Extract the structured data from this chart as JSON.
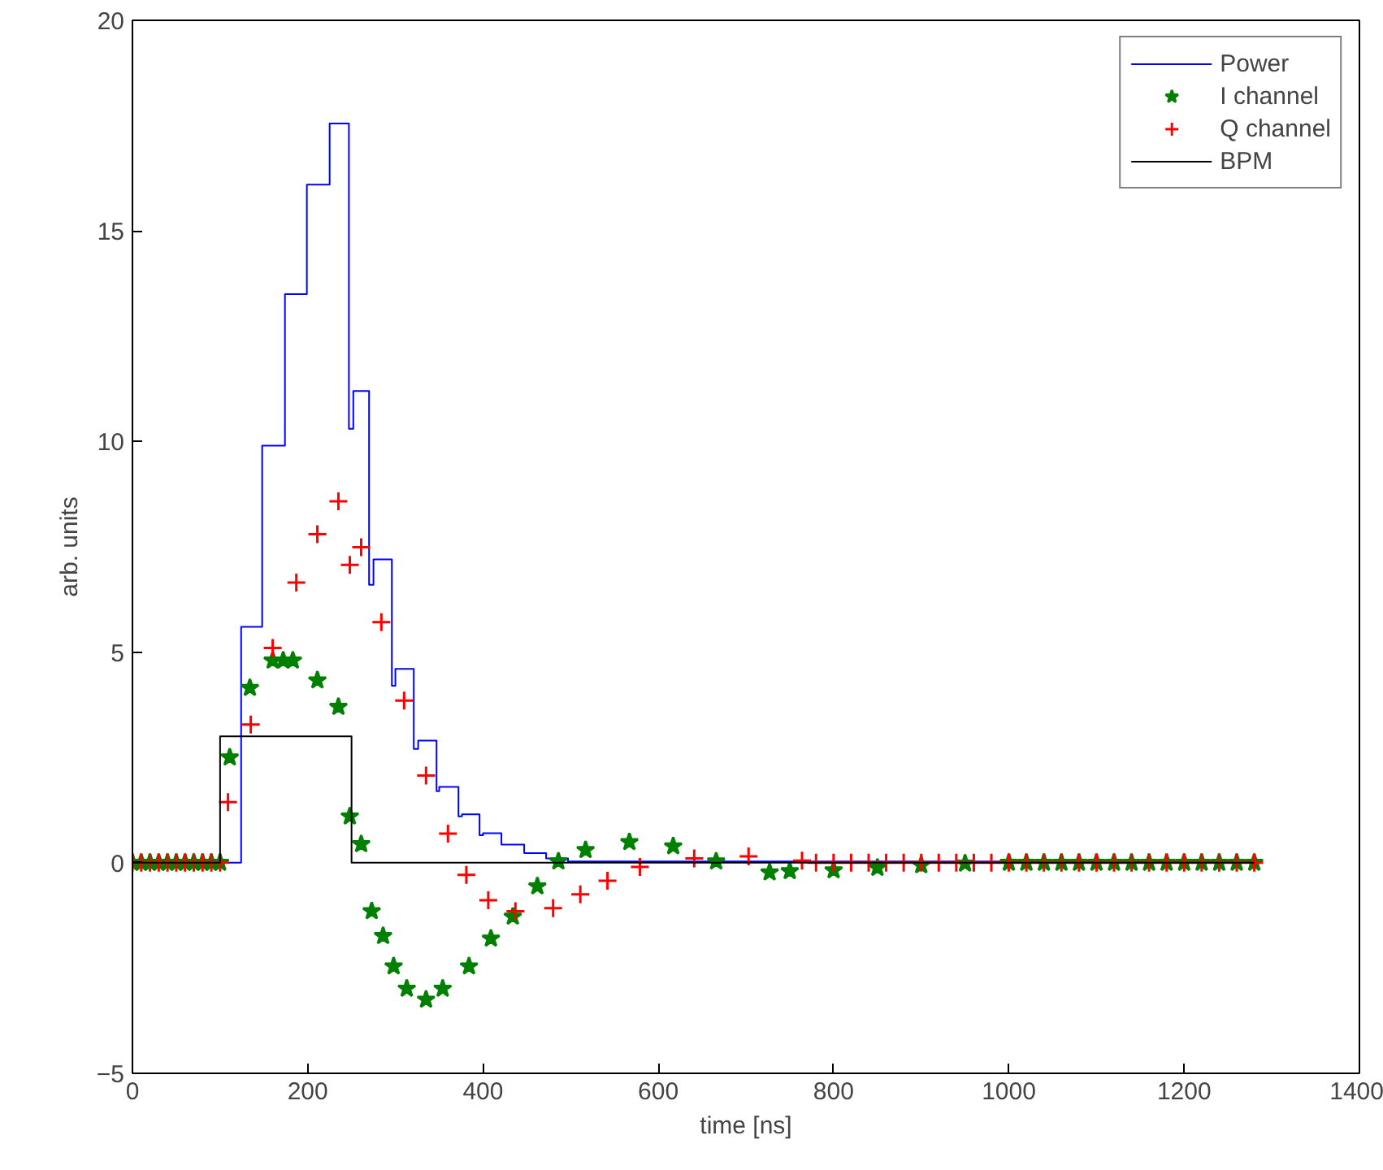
{
  "chart_data": {
    "type": "step",
    "xlabel": "time [ns]",
    "ylabel": "arb. units",
    "xlim": [
      0,
      1400
    ],
    "xticks": [
      0,
      200,
      400,
      600,
      800,
      1000,
      1200,
      1400
    ],
    "ylim": [
      -5,
      20
    ],
    "yticks": [
      -5,
      0,
      5,
      10,
      15,
      20
    ],
    "grid": false,
    "legend": "top right",
    "series": [
      {
        "name": "Power",
        "color": "#0000ff",
        "x": [
          0,
          124,
          148,
          174,
          199,
          225,
          247,
          252,
          270,
          275,
          296,
          300,
          321,
          326,
          347,
          350,
          372,
          376,
          396,
          400,
          421,
          447,
          472,
          497,
          1280
        ],
        "values": [
          0,
          5.6,
          9.9,
          13.5,
          16.1,
          17.55,
          10.3,
          11.2,
          6.6,
          7.2,
          4.2,
          4.6,
          2.7,
          2.9,
          1.7,
          1.8,
          1.1,
          1.15,
          0.65,
          0.7,
          0.43,
          0.23,
          0.1,
          0.03,
          0.03
        ]
      },
      {
        "name": "I channel",
        "type": "scatter",
        "color": "#008000",
        "marker": "star",
        "x": [
          0,
          10,
          20,
          30,
          40,
          50,
          60,
          70,
          80,
          90,
          100,
          111,
          134,
          160,
          172,
          183,
          211,
          235,
          248,
          261,
          273,
          286,
          298,
          313,
          335,
          354,
          384,
          409,
          434,
          462,
          486,
          517,
          567,
          617,
          666,
          727,
          750,
          800,
          850,
          900,
          950,
          1000,
          1020,
          1040,
          1060,
          1080,
          1100,
          1120,
          1140,
          1160,
          1180,
          1200,
          1220,
          1240,
          1260,
          1280
        ],
        "values": [
          0,
          0,
          0,
          0,
          0,
          0,
          0,
          0,
          0,
          0,
          0,
          2.5,
          4.15,
          4.8,
          4.8,
          4.8,
          4.33,
          3.7,
          1.1,
          0.44,
          -1.15,
          -1.74,
          -2.46,
          -2.99,
          -3.25,
          -2.99,
          -2.46,
          -1.8,
          -1.28,
          -0.56,
          0.03,
          0.3,
          0.49,
          0.39,
          0.03,
          -0.23,
          -0.2,
          -0.18,
          -0.12,
          -0.06,
          -0.02,
          0,
          0,
          0,
          0,
          0,
          0,
          0,
          0,
          0,
          0,
          0,
          0,
          0,
          0,
          0
        ]
      },
      {
        "name": "Q channel",
        "type": "scatter",
        "color": "#ff0000",
        "marker": "cross",
        "x": [
          0,
          10,
          20,
          30,
          40,
          50,
          60,
          70,
          80,
          90,
          100,
          109,
          135,
          160,
          187,
          211,
          235,
          248,
          261,
          284,
          310,
          335,
          360,
          381,
          406,
          437,
          480,
          511,
          542,
          579,
          641,
          703,
          764,
          780,
          800,
          820,
          840,
          860,
          880,
          900,
          920,
          940,
          960,
          980,
          1000,
          1020,
          1040,
          1060,
          1080,
          1100,
          1120,
          1140,
          1160,
          1180,
          1200,
          1220,
          1240,
          1260,
          1280
        ],
        "values": [
          0,
          0,
          0,
          0,
          0,
          0,
          0,
          0,
          0,
          0,
          0,
          1.44,
          3.28,
          5.1,
          6.65,
          7.8,
          8.58,
          7.07,
          7.49,
          5.71,
          3.85,
          2.07,
          0.69,
          -0.29,
          -0.89,
          -1.15,
          -1.08,
          -0.75,
          -0.43,
          -0.1,
          0.1,
          0.15,
          0.05,
          0,
          0,
          0,
          0,
          0,
          0,
          0,
          0,
          0,
          0,
          0,
          0,
          0,
          0,
          0,
          0,
          0,
          0,
          0,
          0,
          0,
          0,
          0,
          0,
          0,
          0
        ]
      },
      {
        "name": "BPM",
        "color": "#000000",
        "x": [
          0,
          100,
          250,
          1280
        ],
        "values": [
          0,
          3,
          0,
          0
        ]
      }
    ]
  }
}
